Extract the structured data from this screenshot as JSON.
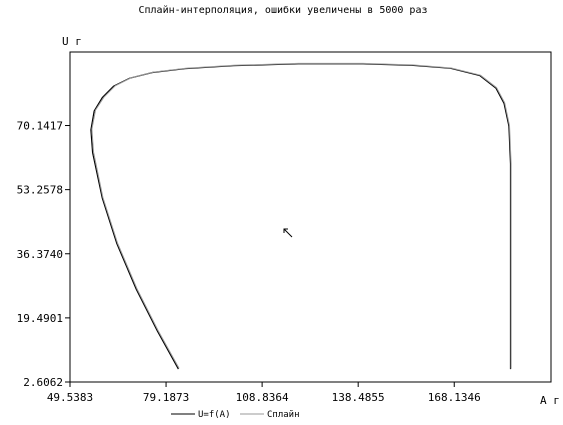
{
  "chart_data": {
    "type": "line",
    "title": "Сплайн-интерполяция, ошибки увеличены в 5000 раз",
    "xlabel": "A г",
    "ylabel": "U г",
    "xlim": [
      49.5383,
      198.0
    ],
    "ylim": [
      2.6062,
      89.5
    ],
    "x_ticks": [
      "49.5383",
      "79.1873",
      "108.8364",
      "138.4855",
      "168.1346"
    ],
    "x_tick_values": [
      49.5383,
      79.1873,
      108.8364,
      138.4855,
      168.1346
    ],
    "y_ticks": [
      "2.6062",
      "19.4901",
      "36.3740",
      "53.2578",
      "70.1417"
    ],
    "y_tick_values": [
      2.6062,
      19.4901,
      36.374,
      53.2578,
      70.1417
    ],
    "grid": false,
    "legend_position": "bottom",
    "series": [
      {
        "name": "U=f(A)",
        "color": "#000000",
        "x": [
          83.0,
          76.5,
          70.0,
          64.0,
          59.5,
          56.5,
          56.0,
          57.0,
          59.5,
          63.0,
          68.0,
          75.0,
          85.0,
          100.0,
          120.0,
          140.0,
          155.0,
          167.0,
          176.0,
          181.0,
          183.5,
          185.0,
          185.5,
          185.5,
          185.5,
          185.5,
          185.5
        ],
        "y": [
          6.0,
          16.0,
          27.0,
          39.0,
          51.0,
          63.0,
          69.0,
          74.0,
          77.5,
          80.5,
          82.6,
          84.1,
          85.1,
          85.9,
          86.4,
          86.4,
          86.0,
          85.2,
          83.3,
          80.0,
          76.0,
          70.0,
          60.0,
          45.0,
          30.0,
          15.0,
          6.0
        ]
      },
      {
        "name": "Сплайн",
        "color": "#9a9a9a",
        "x": [
          83.2,
          76.7,
          70.2,
          64.2,
          59.7,
          56.8,
          56.3,
          57.4,
          60.0,
          63.5,
          68.4,
          75.3,
          85.3,
          100.2,
          120.0,
          140.0,
          155.2,
          167.2,
          176.2,
          181.2,
          183.7,
          185.2,
          185.7,
          185.7,
          185.7,
          185.7,
          185.7
        ],
        "y": [
          6.2,
          16.2,
          27.2,
          39.2,
          51.2,
          63.2,
          69.2,
          74.2,
          77.6,
          80.6,
          82.7,
          84.2,
          85.2,
          86.0,
          86.5,
          86.5,
          86.1,
          85.3,
          83.4,
          80.1,
          76.1,
          70.1,
          60.1,
          45.1,
          30.1,
          15.1,
          6.1
        ]
      }
    ]
  }
}
